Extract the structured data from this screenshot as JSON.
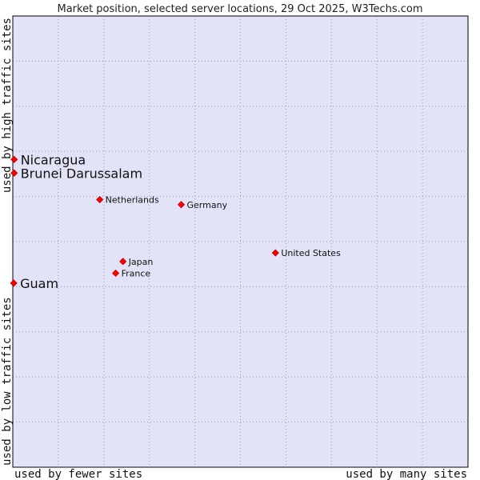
{
  "chart_data": {
    "type": "scatter",
    "title": "Market position, selected server locations, 29 Oct 2025, W3Techs.com",
    "xlabel_left": "used by fewer sites",
    "xlabel_right": "used by many sites",
    "ylabel_bottom": "used by low traffic sites",
    "ylabel_top": "used by high traffic sites",
    "xlim": [
      0,
      100
    ],
    "ylim": [
      0,
      100
    ],
    "grid": true,
    "x_gridlines": [
      10,
      20,
      30,
      40,
      50,
      60,
      70,
      80,
      90
    ],
    "y_gridlines": [
      10,
      20,
      30,
      40,
      50,
      60,
      70,
      80,
      90
    ],
    "points": [
      {
        "label": "Nicaragua",
        "x": 0.3,
        "y": 68.2,
        "emphasis": true
      },
      {
        "label": "Brunei Darussalam",
        "x": 0.3,
        "y": 65.2,
        "emphasis": true
      },
      {
        "label": "Guam",
        "x": 0.2,
        "y": 40.8,
        "emphasis": true
      },
      {
        "label": "Netherlands",
        "x": 19.1,
        "y": 59.3,
        "emphasis": false
      },
      {
        "label": "Germany",
        "x": 37.0,
        "y": 58.2,
        "emphasis": false
      },
      {
        "label": "United States",
        "x": 57.7,
        "y": 47.5,
        "emphasis": false
      },
      {
        "label": "Japan",
        "x": 24.2,
        "y": 45.6,
        "emphasis": false
      },
      {
        "label": "France",
        "x": 22.6,
        "y": 43.0,
        "emphasis": false
      }
    ]
  },
  "colors": {
    "plot_background": "#e3e3f7",
    "grid": "#9a9ab0",
    "frame": "#000000",
    "marker_fill": "#ff0000",
    "marker_stroke": "#b00000"
  }
}
